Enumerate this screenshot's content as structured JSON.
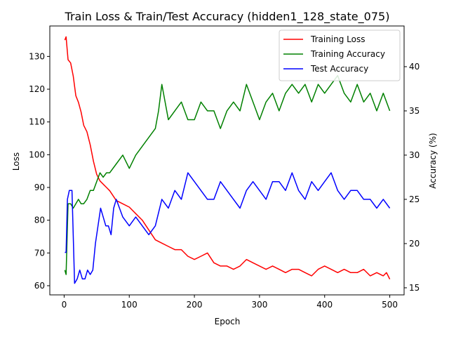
{
  "chart_data": {
    "type": "line",
    "title": "Train Loss & Train/Test Accuracy (hidden1_128_state_075)",
    "xlabel": "Epoch",
    "ylabel_left": "Loss",
    "ylabel_right": "Accuracy (%)",
    "xlim": [
      -22,
      522
    ],
    "ylim_left": [
      57.2,
      139.3
    ],
    "ylim_right": [
      14.2,
      44.6
    ],
    "xticks": [
      0,
      100,
      200,
      300,
      400,
      500
    ],
    "yticks_left": [
      60,
      70,
      80,
      90,
      100,
      110,
      120,
      130
    ],
    "yticks_right": [
      15,
      20,
      25,
      30,
      35,
      40
    ],
    "legend_position": "top-right",
    "grid": false,
    "series": [
      {
        "name": "Training Loss",
        "axis": "left",
        "color": "#ff0000",
        "x": [
          1,
          3,
          6,
          10,
          14,
          18,
          22,
          26,
          30,
          35,
          40,
          45,
          50,
          55,
          60,
          65,
          70,
          80,
          90,
          100,
          110,
          120,
          130,
          140,
          150,
          160,
          170,
          180,
          190,
          200,
          210,
          220,
          230,
          240,
          250,
          260,
          270,
          280,
          290,
          300,
          310,
          320,
          330,
          340,
          350,
          360,
          370,
          380,
          390,
          400,
          410,
          420,
          430,
          440,
          450,
          460,
          470,
          480,
          490,
          495,
          500
        ],
        "y": [
          135,
          136,
          129,
          128,
          124,
          118,
          116,
          113,
          109,
          107,
          103,
          98,
          94,
          92,
          91,
          90,
          89,
          86,
          85,
          84,
          82,
          80,
          77,
          74,
          73,
          72,
          71,
          71,
          69,
          68,
          69,
          70,
          67,
          66,
          66,
          65,
          66,
          68,
          67,
          66,
          65,
          66,
          65,
          64,
          65,
          65,
          64,
          63,
          65,
          66,
          65,
          64,
          65,
          64,
          64,
          65,
          63,
          64,
          63,
          64,
          62
        ]
      },
      {
        "name": "Training Accuracy",
        "axis": "right",
        "color": "#008000",
        "x": [
          1,
          3,
          6,
          10,
          14,
          18,
          22,
          26,
          30,
          35,
          40,
          45,
          50,
          55,
          60,
          65,
          70,
          80,
          90,
          100,
          110,
          120,
          130,
          140,
          145,
          150,
          160,
          170,
          180,
          190,
          200,
          210,
          220,
          230,
          240,
          250,
          260,
          270,
          280,
          290,
          300,
          310,
          320,
          330,
          340,
          350,
          360,
          370,
          380,
          390,
          400,
          410,
          420,
          430,
          440,
          450,
          460,
          470,
          480,
          490,
          500
        ],
        "y": [
          17,
          16.5,
          24.5,
          24.5,
          24,
          24.5,
          25,
          24.5,
          24.5,
          25,
          26,
          26,
          27,
          28,
          27.5,
          28,
          28,
          29,
          30,
          28.5,
          30,
          31,
          32,
          33,
          35,
          38,
          34,
          35,
          36,
          34,
          34,
          36,
          35,
          35,
          33,
          35,
          36,
          35,
          38,
          36,
          34,
          36,
          37,
          35,
          37,
          38,
          37,
          38,
          36,
          38,
          37,
          38,
          39,
          37,
          36,
          38,
          36,
          37,
          35,
          37,
          35
        ]
      },
      {
        "name": "Test Accuracy",
        "axis": "right",
        "color": "#0000ff",
        "x": [
          1,
          3,
          5,
          8,
          12,
          16,
          20,
          24,
          28,
          32,
          36,
          40,
          44,
          48,
          52,
          56,
          60,
          64,
          68,
          72,
          76,
          80,
          90,
          100,
          110,
          120,
          130,
          140,
          150,
          160,
          170,
          180,
          190,
          200,
          210,
          220,
          230,
          240,
          250,
          260,
          270,
          280,
          290,
          300,
          310,
          320,
          330,
          340,
          350,
          360,
          370,
          380,
          390,
          400,
          410,
          420,
          430,
          440,
          450,
          460,
          470,
          480,
          490,
          500
        ],
        "y": [
          19,
          19,
          25,
          26,
          26,
          15.5,
          16,
          17,
          16,
          16,
          17,
          16.5,
          17,
          20,
          22,
          24,
          23,
          22,
          22,
          21,
          24,
          25,
          23,
          22,
          23,
          22,
          21,
          22,
          25,
          24,
          26,
          25,
          28,
          27,
          26,
          25,
          25,
          27,
          26,
          25,
          24,
          26,
          27,
          26,
          25,
          27,
          27,
          26,
          28,
          26,
          25,
          27,
          26,
          27,
          28,
          26,
          25,
          26,
          26,
          25,
          25,
          24,
          25,
          24
        ]
      }
    ]
  }
}
